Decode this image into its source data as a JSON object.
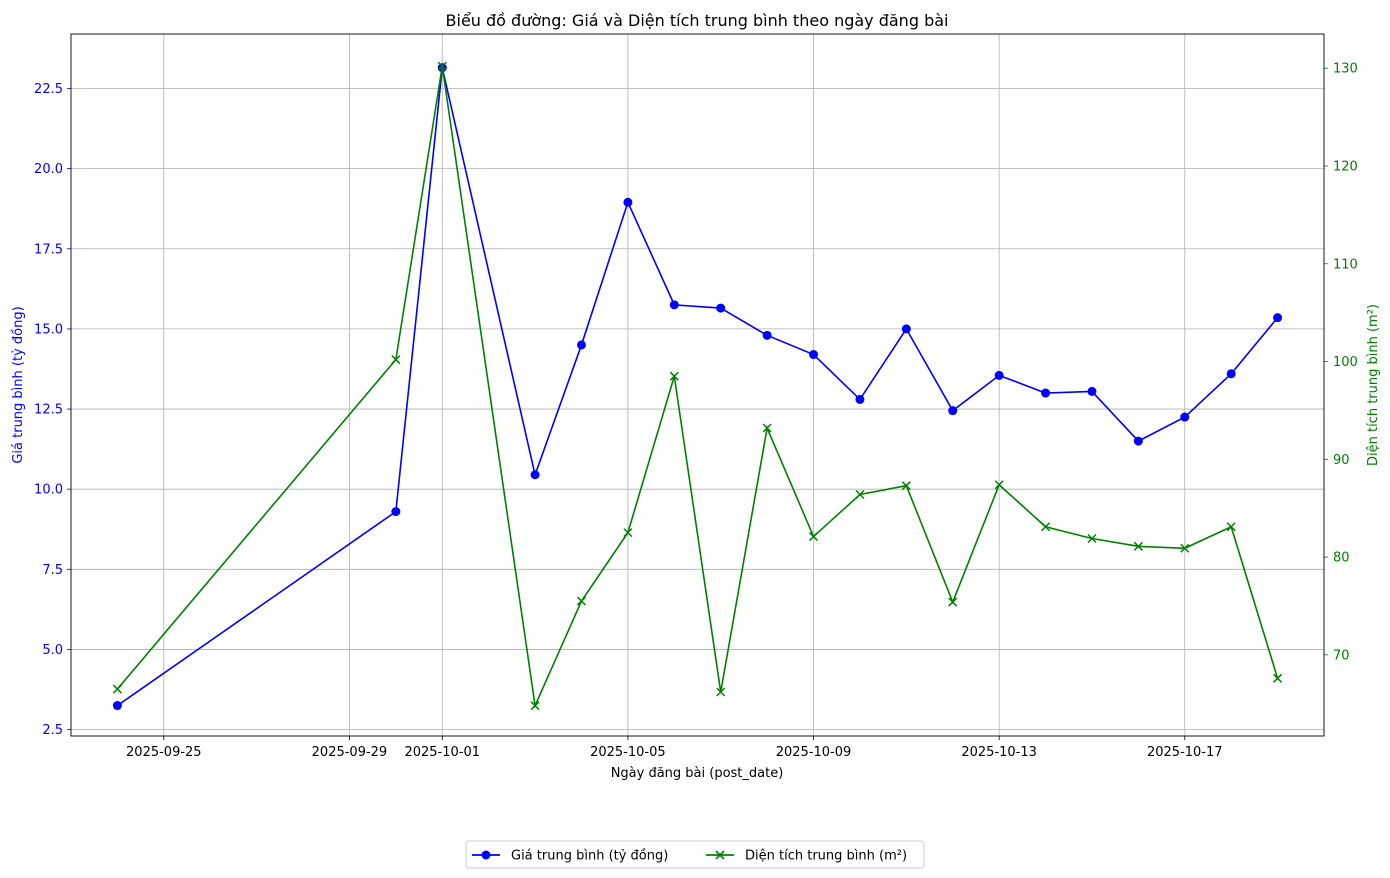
{
  "chart_data": {
    "type": "line",
    "title": "Biểu đồ đường: Giá và Diện tích trung bình theo ngày đăng bài",
    "xlabel": "Ngày đăng bài (post_date)",
    "ylabel_left": "Giá trung bình (tỷ đồng)",
    "ylabel_right": "Diện tích trung bình (m²)",
    "x": [
      "2025-09-24",
      "2025-09-30",
      "2025-10-01",
      "2025-10-03",
      "2025-10-04",
      "2025-10-05",
      "2025-10-06",
      "2025-10-07",
      "2025-10-08",
      "2025-10-09",
      "2025-10-10",
      "2025-10-11",
      "2025-10-12",
      "2025-10-13",
      "2025-10-14",
      "2025-10-15",
      "2025-10-16",
      "2025-10-17",
      "2025-10-18",
      "2025-10-19"
    ],
    "xticks": [
      "2025-09-25",
      "2025-09-29",
      "2025-10-01",
      "2025-10-05",
      "2025-10-09",
      "2025-10-13",
      "2025-10-17"
    ],
    "xlim": [
      "2025-09-23",
      "2025-10-20"
    ],
    "yticks_left": [
      "2.5",
      "5.0",
      "7.5",
      "10.0",
      "12.5",
      "15.0",
      "17.5",
      "20.0",
      "22.5"
    ],
    "yticks_right": [
      "70",
      "80",
      "90",
      "100",
      "110",
      "120",
      "130"
    ],
    "ylim_left": [
      2.3,
      24.2
    ],
    "ylim_right": [
      61.7,
      133.5
    ],
    "grid": true,
    "legend_position": "bottom-center",
    "series": [
      {
        "name": "Giá trung bình (tỷ đồng)",
        "axis": "left",
        "color": "#0000ff",
        "marker": "circle",
        "values": [
          3.25,
          9.3,
          23.15,
          10.45,
          14.5,
          18.95,
          15.75,
          15.65,
          14.8,
          14.2,
          12.8,
          15.0,
          12.45,
          13.55,
          13.0,
          13.05,
          11.5,
          12.25,
          13.6,
          15.35
        ]
      },
      {
        "name": "Diện tích trung bình (m²)",
        "axis": "right",
        "color": "#008000",
        "marker": "x",
        "values": [
          66.5,
          100.2,
          130.2,
          64.8,
          75.5,
          82.5,
          98.5,
          66.2,
          93.2,
          82.1,
          86.4,
          87.3,
          75.4,
          87.4,
          83.1,
          81.9,
          81.1,
          80.9,
          83.1,
          67.6
        ]
      }
    ]
  }
}
